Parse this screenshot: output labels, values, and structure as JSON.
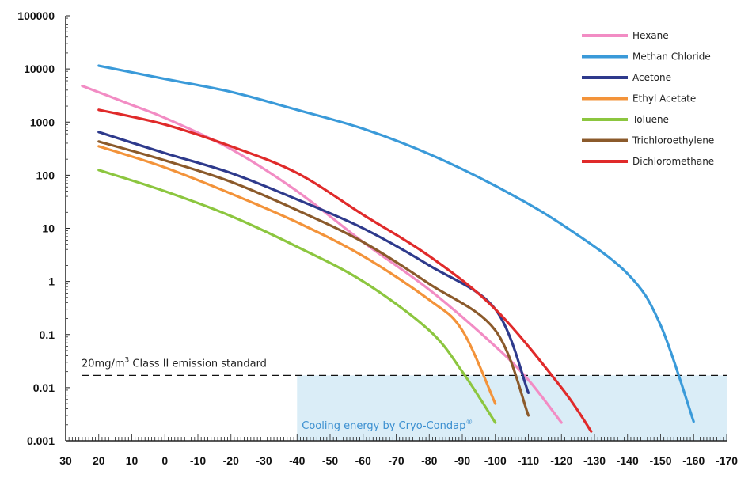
{
  "chart_data": {
    "type": "line",
    "title": "",
    "xlabel": "",
    "ylabel": "",
    "x_axis_reversed": true,
    "xlim": [
      30,
      -170
    ],
    "ylim": [
      0.001,
      100000
    ],
    "y_scale": "log",
    "x_ticks": [
      30,
      20,
      10,
      0,
      -10,
      -20,
      -30,
      -40,
      -50,
      -60,
      -70,
      -80,
      -90,
      -100,
      -110,
      -120,
      -130,
      -140,
      -150,
      -160,
      -170
    ],
    "y_ticks": [
      {
        "value": 100000,
        "label": "100000"
      },
      {
        "value": 10000,
        "label": "10000"
      },
      {
        "value": 1000,
        "label": "1000"
      },
      {
        "value": 100,
        "label": "100"
      },
      {
        "value": 10,
        "label": "10"
      },
      {
        "value": 1,
        "label": "1"
      },
      {
        "value": 0.1,
        "label": "0.1"
      },
      {
        "value": 0.01,
        "label": "0.01"
      },
      {
        "value": 0.001,
        "label": "0.001"
      }
    ],
    "grid": false,
    "legend_position": "top-right",
    "series": [
      {
        "name": "Hexane",
        "color": "#f28cc4",
        "points": [
          [
            25,
            4800
          ],
          [
            10,
            2100
          ],
          [
            0,
            1200
          ],
          [
            -20,
            310
          ],
          [
            -40,
            50
          ],
          [
            -60,
            5.5
          ],
          [
            -80,
            0.7
          ],
          [
            -100,
            0.06
          ],
          [
            -110,
            0.014
          ],
          [
            -120,
            0.0022
          ]
        ]
      },
      {
        "name": "Methan Chloride",
        "color": "#3a9ad9",
        "points": [
          [
            20,
            11500
          ],
          [
            0,
            6500
          ],
          [
            -20,
            3700
          ],
          [
            -40,
            1700
          ],
          [
            -60,
            750
          ],
          [
            -80,
            250
          ],
          [
            -100,
            63
          ],
          [
            -120,
            12
          ],
          [
            -140,
            1.4
          ],
          [
            -150,
            0.15
          ],
          [
            -160,
            0.0023
          ]
        ]
      },
      {
        "name": "Acetone",
        "color": "#2e3a8c",
        "points": [
          [
            20,
            650
          ],
          [
            0,
            260
          ],
          [
            -20,
            110
          ],
          [
            -40,
            35
          ],
          [
            -60,
            10
          ],
          [
            -80,
            2
          ],
          [
            -100,
            0.3
          ],
          [
            -110,
            0.008
          ]
        ]
      },
      {
        "name": "Ethyl Acetate",
        "color": "#f3933a",
        "points": [
          [
            20,
            350
          ],
          [
            0,
            140
          ],
          [
            -20,
            45
          ],
          [
            -40,
            13
          ],
          [
            -60,
            3
          ],
          [
            -80,
            0.45
          ],
          [
            -90,
            0.12
          ],
          [
            -100,
            0.005
          ]
        ]
      },
      {
        "name": "Toluene",
        "color": "#8cc63f",
        "points": [
          [
            20,
            125
          ],
          [
            0,
            50
          ],
          [
            -20,
            17
          ],
          [
            -40,
            4.5
          ],
          [
            -60,
            1
          ],
          [
            -80,
            0.12
          ],
          [
            -90,
            0.02
          ],
          [
            -100,
            0.0022
          ]
        ]
      },
      {
        "name": "Trichloroethylene",
        "color": "#8b5a2b",
        "points": [
          [
            20,
            430
          ],
          [
            0,
            190
          ],
          [
            -20,
            75
          ],
          [
            -40,
            22
          ],
          [
            -60,
            5.5
          ],
          [
            -80,
            0.9
          ],
          [
            -100,
            0.12
          ],
          [
            -110,
            0.003
          ]
        ]
      },
      {
        "name": "Dichloromethane",
        "color": "#e02a2a",
        "points": [
          [
            20,
            1700
          ],
          [
            0,
            900
          ],
          [
            -20,
            350
          ],
          [
            -40,
            110
          ],
          [
            -60,
            18
          ],
          [
            -80,
            3
          ],
          [
            -100,
            0.3
          ],
          [
            -120,
            0.01
          ],
          [
            -129,
            0.0015
          ]
        ]
      }
    ],
    "annotations": {
      "emission_line_value": 0.017,
      "emission_label_prefix": "20mg/m",
      "emission_label_sup": "3",
      "emission_label_suffix": " Class II emission standard",
      "zone_x_range": [
        -40,
        -170
      ],
      "zone_label": "Cooling energy by Cryo-Condap",
      "zone_label_mark": "®",
      "zone_color": "#daedf7"
    }
  }
}
